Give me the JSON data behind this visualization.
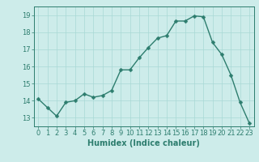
{
  "x": [
    0,
    1,
    2,
    3,
    4,
    5,
    6,
    7,
    8,
    9,
    10,
    11,
    12,
    13,
    14,
    15,
    16,
    17,
    18,
    19,
    20,
    21,
    22,
    23
  ],
  "y": [
    14.1,
    13.6,
    13.1,
    13.9,
    14.0,
    14.4,
    14.2,
    14.3,
    14.6,
    15.8,
    15.8,
    16.5,
    17.1,
    17.65,
    17.8,
    18.65,
    18.65,
    18.95,
    18.9,
    17.4,
    16.7,
    15.5,
    13.9,
    12.7
  ],
  "line_color": "#2d7d6e",
  "marker": "D",
  "markersize": 2.5,
  "linewidth": 1.0,
  "xlabel": "Humidex (Indice chaleur)",
  "xlim": [
    -0.5,
    23.5
  ],
  "ylim": [
    12.5,
    19.5
  ],
  "yticks": [
    13,
    14,
    15,
    16,
    17,
    18,
    19
  ],
  "xticks": [
    0,
    1,
    2,
    3,
    4,
    5,
    6,
    7,
    8,
    9,
    10,
    11,
    12,
    13,
    14,
    15,
    16,
    17,
    18,
    19,
    20,
    21,
    22,
    23
  ],
  "bg_color": "#cdecea",
  "grid_color": "#a8d8d5",
  "tick_color": "#2d7d6e",
  "label_color": "#2d7d6e",
  "xlabel_fontsize": 7,
  "tick_fontsize": 6
}
